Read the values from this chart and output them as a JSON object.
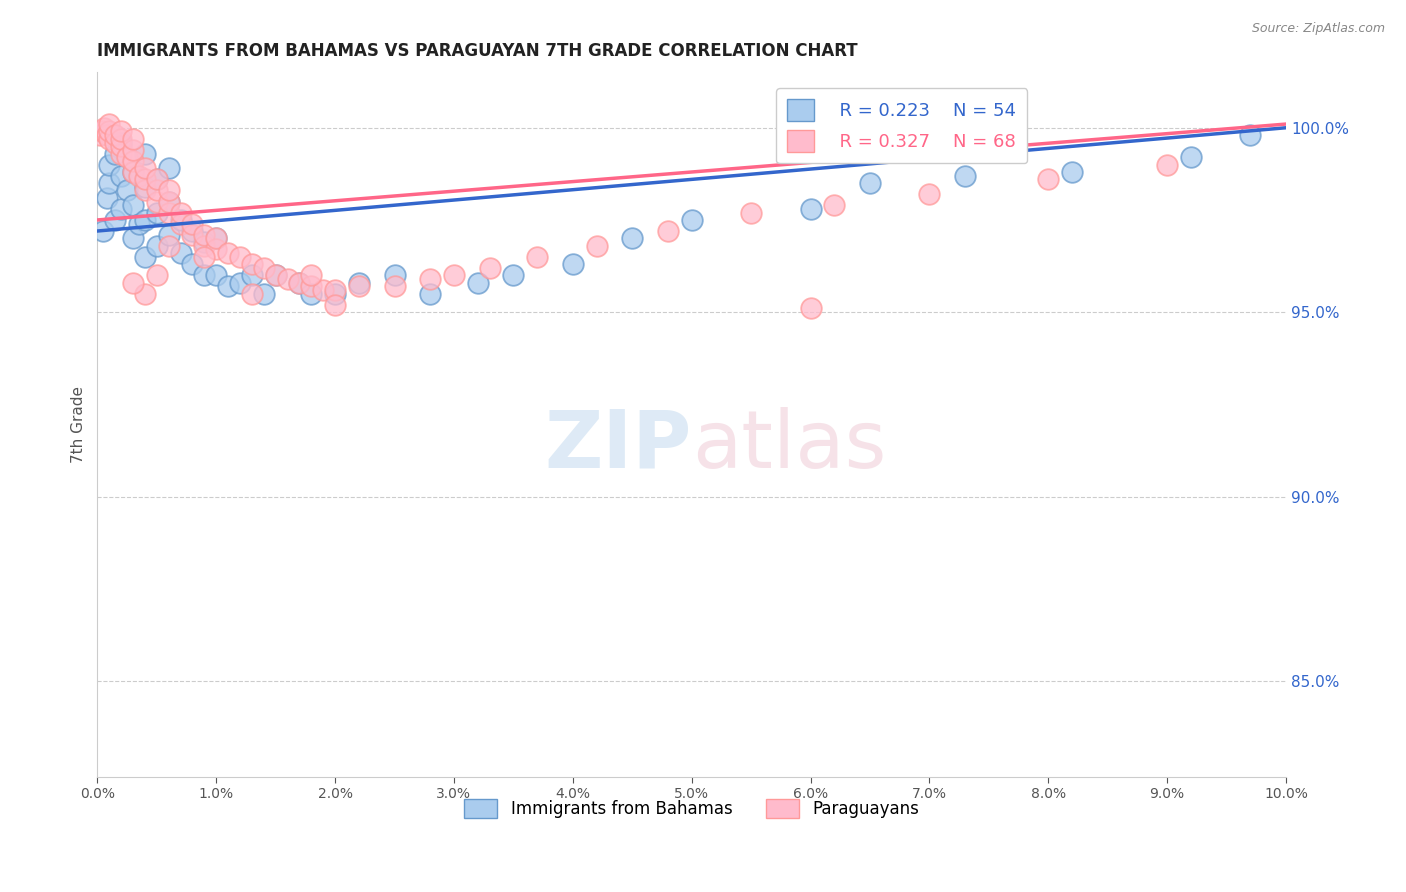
{
  "title": "IMMIGRANTS FROM BAHAMAS VS PARAGUAYAN 7TH GRADE CORRELATION CHART",
  "source": "Source: ZipAtlas.com",
  "ylabel": "7th Grade",
  "right_yticks": [
    85.0,
    90.0,
    95.0,
    100.0
  ],
  "legend_blue_r": "R = 0.223",
  "legend_blue_n": "N = 54",
  "legend_pink_r": "R = 0.327",
  "legend_pink_n": "N = 68",
  "legend_label_blue": "Immigrants from Bahamas",
  "legend_label_pink": "Paraguayans",
  "blue_scatter_color_face": "#aaccee",
  "blue_scatter_color_edge": "#6699CC",
  "pink_scatter_color_face": "#ffbbcc",
  "pink_scatter_color_edge": "#FF9999",
  "trend_blue_color": "#3366CC",
  "trend_pink_color": "#FF6688",
  "xmin": 0.0,
  "xmax": 0.1,
  "ymin": 0.824,
  "ymax": 1.015,
  "blue_x": [
    0.0005,
    0.0008,
    0.001,
    0.001,
    0.0015,
    0.0015,
    0.002,
    0.002,
    0.002,
    0.0025,
    0.003,
    0.003,
    0.003,
    0.0035,
    0.004,
    0.004,
    0.004,
    0.004,
    0.005,
    0.005,
    0.005,
    0.006,
    0.006,
    0.006,
    0.007,
    0.007,
    0.008,
    0.008,
    0.009,
    0.009,
    0.01,
    0.01,
    0.011,
    0.012,
    0.013,
    0.014,
    0.015,
    0.017,
    0.018,
    0.02,
    0.022,
    0.025,
    0.028,
    0.032,
    0.035,
    0.04,
    0.045,
    0.05,
    0.06,
    0.065,
    0.073,
    0.082,
    0.092,
    0.097
  ],
  "blue_y": [
    0.972,
    0.981,
    0.985,
    0.99,
    0.975,
    0.993,
    0.978,
    0.987,
    0.996,
    0.983,
    0.97,
    0.979,
    0.988,
    0.974,
    0.965,
    0.975,
    0.984,
    0.993,
    0.968,
    0.977,
    0.986,
    0.971,
    0.98,
    0.989,
    0.966,
    0.975,
    0.963,
    0.972,
    0.96,
    0.969,
    0.96,
    0.97,
    0.957,
    0.958,
    0.96,
    0.955,
    0.96,
    0.958,
    0.955,
    0.955,
    0.958,
    0.96,
    0.955,
    0.958,
    0.96,
    0.963,
    0.97,
    0.975,
    0.978,
    0.985,
    0.987,
    0.988,
    0.992,
    0.998
  ],
  "pink_x": [
    0.0002,
    0.0004,
    0.0006,
    0.0008,
    0.001,
    0.001,
    0.001,
    0.0015,
    0.0015,
    0.002,
    0.002,
    0.002,
    0.002,
    0.0025,
    0.003,
    0.003,
    0.003,
    0.003,
    0.0035,
    0.004,
    0.004,
    0.004,
    0.005,
    0.005,
    0.005,
    0.006,
    0.006,
    0.006,
    0.007,
    0.007,
    0.008,
    0.008,
    0.009,
    0.009,
    0.01,
    0.01,
    0.011,
    0.012,
    0.013,
    0.014,
    0.015,
    0.016,
    0.017,
    0.018,
    0.019,
    0.02,
    0.022,
    0.025,
    0.028,
    0.03,
    0.033,
    0.037,
    0.042,
    0.048,
    0.055,
    0.062,
    0.07,
    0.08,
    0.09,
    0.06,
    0.018,
    0.013,
    0.02,
    0.009,
    0.006,
    0.005,
    0.004,
    0.003
  ],
  "pink_y": [
    0.998,
    0.999,
    1.0,
    0.998,
    0.997,
    0.999,
    1.001,
    0.996,
    0.998,
    0.993,
    0.995,
    0.997,
    0.999,
    0.992,
    0.988,
    0.991,
    0.994,
    0.997,
    0.987,
    0.983,
    0.986,
    0.989,
    0.98,
    0.983,
    0.986,
    0.977,
    0.98,
    0.983,
    0.974,
    0.977,
    0.971,
    0.974,
    0.968,
    0.971,
    0.967,
    0.97,
    0.966,
    0.965,
    0.963,
    0.962,
    0.96,
    0.959,
    0.958,
    0.957,
    0.956,
    0.956,
    0.957,
    0.957,
    0.959,
    0.96,
    0.962,
    0.965,
    0.968,
    0.972,
    0.977,
    0.979,
    0.982,
    0.986,
    0.99,
    0.951,
    0.96,
    0.955,
    0.952,
    0.965,
    0.968,
    0.96,
    0.955,
    0.958
  ]
}
